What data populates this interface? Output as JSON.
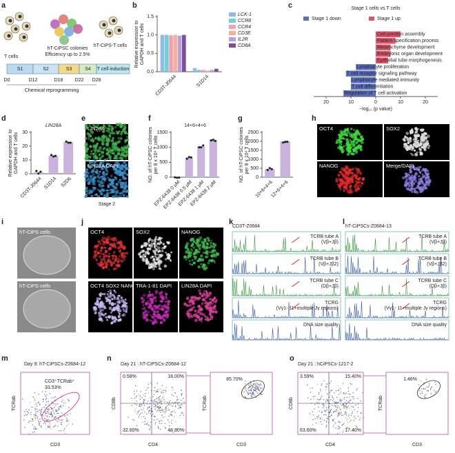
{
  "letters": [
    "a",
    "b",
    "c",
    "d",
    "e",
    "f",
    "g",
    "h",
    "i",
    "j",
    "k",
    "l",
    "m",
    "n",
    "o"
  ],
  "a": {
    "t_cells": "T cells",
    "colonies": "hT-CiPSC colonies",
    "efficiency": "Efficiency up to 2.5%",
    "derived": "hT-CiPS-T cells",
    "stages": [
      "S1",
      "S2",
      "S3",
      "S4",
      "T cell induction"
    ],
    "days": [
      "D0",
      "D12",
      "D18",
      "D22",
      "D28"
    ],
    "caption": "Chemical reprogramming"
  },
  "b": {
    "type": "bar",
    "ylabel": [
      "Relative expression to",
      "GAPDH and T cells"
    ],
    "categories": [
      "CD3T-J0644",
      "S1D14"
    ],
    "ylim": [
      0,
      1.5
    ],
    "yticks": [
      {
        "value": 0,
        "label": "0.0"
      },
      0.5,
      {
        "value": 1,
        "label": "1.0"
      },
      1.5
    ],
    "series": [
      {
        "name": "LCK-1",
        "color": "#8fbce6",
        "values": [
          1.0,
          0.1
        ]
      },
      {
        "name": "CCR8",
        "color": "#6fd0d8",
        "values": [
          1.0,
          0.05
        ]
      },
      {
        "name": "CCR4",
        "color": "#f4a0b0",
        "values": [
          0.99,
          0.05
        ]
      },
      {
        "name": "CD3E",
        "color": "#f5b09a",
        "values": [
          1.0,
          0.03
        ]
      },
      {
        "name": "IL2R",
        "color": "#b9a0d8",
        "values": [
          0.98,
          0.05
        ]
      },
      {
        "name": "CD8A",
        "color": "#7b4f9e",
        "values": [
          1.0,
          0.08
        ]
      }
    ]
  },
  "c": {
    "type": "hbar",
    "title": "Stage 1 cells vs.T cells",
    "legend": [
      "Stage 1 down",
      "Stage 1 up"
    ],
    "colors": [
      "#5b6fc0",
      "#e0556b"
    ],
    "xlabel": "−log₁₀ (p value)",
    "xlim": [
      -25,
      25
    ],
    "xticks": [
      {
        "value": -20,
        "label": "20"
      },
      {
        "value": -10,
        "label": "10"
      },
      0,
      10,
      20
    ],
    "categories": [
      "Cell junction assembly",
      "Pattern specification process",
      "Mesenchyme development",
      "Embryonic organ development",
      "Epithelial tube morphogenesis",
      "Lymphocyte proliferation",
      "T cell receptor signaling pathway",
      "Lymphocyte mediated immunity",
      "T cell differentiation",
      "Regulation of T cell activation"
    ],
    "values": [
      10,
      8,
      6,
      6,
      5,
      -8,
      -12,
      -10,
      -10,
      -13
    ]
  },
  "d": {
    "type": "bar",
    "title": "LIN28A",
    "ylabel": [
      "Relative expression to",
      "GAPDH and T cells"
    ],
    "categories": [
      "CD3T-J0644",
      "S1D14",
      "S2D6"
    ],
    "values": [
      1,
      13,
      23
    ],
    "color": "#c9b3dd",
    "ylim": [
      0,
      30
    ],
    "yticks": [
      0,
      10,
      20,
      30
    ]
  },
  "e": {
    "labels": [
      "LIN28A",
      "LIN28A DAPI"
    ],
    "caption": "Stage 2"
  },
  "f": {
    "type": "bar",
    "title": "14+6+4+6",
    "ylabel": [
      "NO. of hT-CiPSC colonies",
      "per 8 x 10⁴ T cells"
    ],
    "categories": [
      "EPZ-6438 0 μM",
      "EPZ-6438 0.5 μM",
      "EPZ-6438 1 μM",
      "EPZ-6438 2 μM"
    ],
    "values": [
      0,
      650,
      1020,
      1250
    ],
    "color": "#c9b3dd",
    "ylim": [
      0,
      1500
    ],
    "yticks": [
      0,
      500,
      1000,
      1500
    ]
  },
  "g": {
    "type": "bar",
    "ylabel": [
      "NO. of hT-CiPSC colonies",
      "per 8 x 10⁴ T cells"
    ],
    "categories": [
      "10+6+4+6",
      "12+6+4+6"
    ],
    "values": [
      450,
      2000
    ],
    "color": "#c9b3dd",
    "ylim": [
      0,
      2500
    ],
    "yticks": [
      0,
      500,
      1000,
      1500,
      2000,
      2500
    ]
  },
  "h": {
    "labels": [
      "OCT4",
      "SOX2",
      "NANOG",
      "Merge/DAPI"
    ]
  },
  "i": {
    "labels": [
      "hT-CiPS cells",
      "hT-CiPS cells"
    ]
  },
  "j": {
    "labels": [
      "OCT4",
      "SOX2",
      "NANOG",
      "OCT4 SOX2 NANOG DAPI",
      "TRA-1-81 DAPI",
      "LIN28A DAPI"
    ]
  },
  "k": {
    "title": "CD3T-Z0684",
    "rows": [
      [
        "TCRB tube A",
        "(Vβ+Jβ)"
      ],
      [
        "TCRB tube B",
        "(Vβ+Jβ2)"
      ],
      [
        "TCRB tube C",
        "(Dβ+Jβ)"
      ],
      [
        "TCRG",
        "(Vγ1- 11+multiple Jγ regions)"
      ],
      [
        "DNA size quality"
      ]
    ]
  },
  "l": {
    "title": "hT-CiPSCs-Z0684-13",
    "rows": [
      [
        "TCRB tube A",
        "(Vβ+Jβ)"
      ],
      [
        "TCRB tube B",
        "(Vβ+Jβ2)"
      ],
      [
        "TCRB tube C",
        "(Dβ+Jβ)"
      ],
      [
        "TCRG",
        "(Vγ1- 11+multiple Jγ regions)"
      ],
      [
        "DNA size quality"
      ]
    ]
  },
  "m": {
    "title": "Day 9: hT-CiPSCs-Z0684-12",
    "gate": "CD3⁺TCRab⁺",
    "gate_pct": "33.53%",
    "xlabel": "CD3",
    "ylabel": "TCRab"
  },
  "n": {
    "title": "Day 21 : hT-CiPSCs-Z0684-12",
    "quadrants": [
      "0.58%",
      "18.00%",
      "32.60%",
      "48.80%"
    ],
    "xlabel": "CD4",
    "ylabel": "CD8b",
    "gate_pct": "85.70%",
    "xlabel2": "CD3",
    "ylabel2": "TCRab"
  },
  "o": {
    "title": "Day 21 : hCiPSCs-1217-2",
    "quadrants": [
      "3.59%",
      "15.40%",
      "63.60%",
      "17.40%"
    ],
    "xlabel": "CD4",
    "ylabel": "CD8b",
    "gate_pct": "1.46%",
    "xlabel2": "CD3",
    "ylabel2": "TCRab"
  }
}
